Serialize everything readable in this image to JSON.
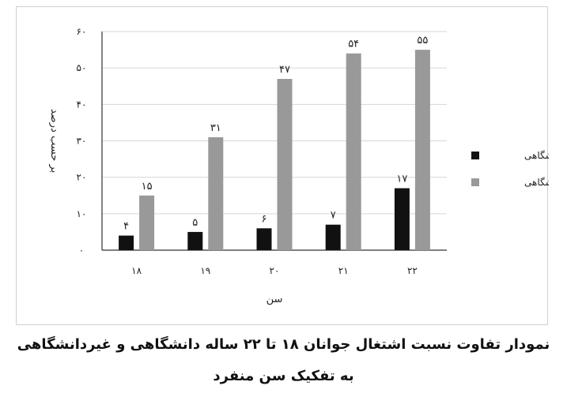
{
  "chart_data": {
    "type": "bar",
    "categories": [
      "۱۸",
      "۱۹",
      "۲۰",
      "۲۱",
      "۲۲"
    ],
    "series": [
      {
        "name": "دانشگاهی",
        "values": [
          4,
          5,
          6,
          7,
          17
        ],
        "labels": [
          "۴",
          "۵",
          "۶",
          "۷",
          "۱۷"
        ],
        "color": "#111111"
      },
      {
        "name": "غیردانشگاهی",
        "values": [
          15,
          31,
          47,
          54,
          55
        ],
        "labels": [
          "۱۵",
          "۳۱",
          "۴۷",
          "۵۴",
          "۵۵"
        ],
        "color": "#999999"
      }
    ],
    "xlabel": "سن",
    "ylabel": "بر حسب درصد",
    "ylim": [
      0,
      60
    ],
    "yticks": [
      0,
      10,
      20,
      30,
      40,
      50,
      60
    ],
    "ytick_labels": [
      "۰",
      "۱۰",
      "۲۰",
      "۳۰",
      "۴۰",
      "۵۰",
      "۶۰"
    ],
    "grid": true,
    "legend_position": "right"
  },
  "caption": {
    "line1": "نمودار تفاوت نسبت اشتغال جوانان ۱۸ تا ۲۲ ساله دانشگاهی و غیردانشگاهی",
    "line2": "به تفکیک سن منفرد"
  }
}
